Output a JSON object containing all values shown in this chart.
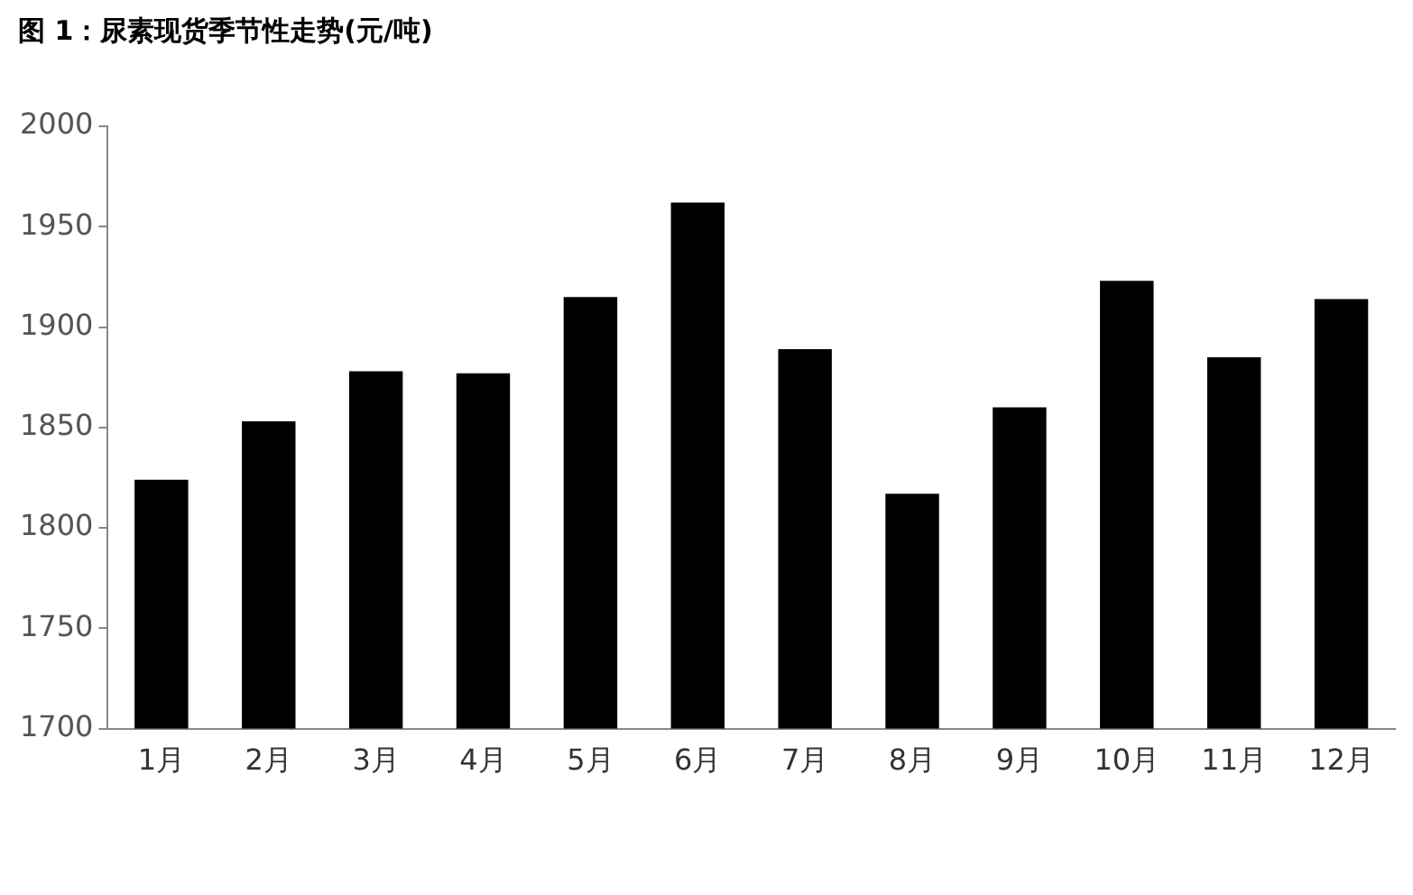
{
  "chart_data": {
    "type": "bar",
    "title": "图 1：尿素现货季节性走势(元/吨)",
    "categories": [
      "1月",
      "2月",
      "3月",
      "4月",
      "5月",
      "6月",
      "7月",
      "8月",
      "9月",
      "10月",
      "11月",
      "12月"
    ],
    "values": [
      1824,
      1853,
      1878,
      1877,
      1915,
      1962,
      1889,
      1817,
      1860,
      1923,
      1885,
      1914
    ],
    "color": "#000000",
    "ylim": [
      1700,
      2000
    ],
    "yticks": [
      1700,
      1750,
      1800,
      1850,
      1900,
      1950,
      2000
    ],
    "grid": false,
    "legend": false
  }
}
